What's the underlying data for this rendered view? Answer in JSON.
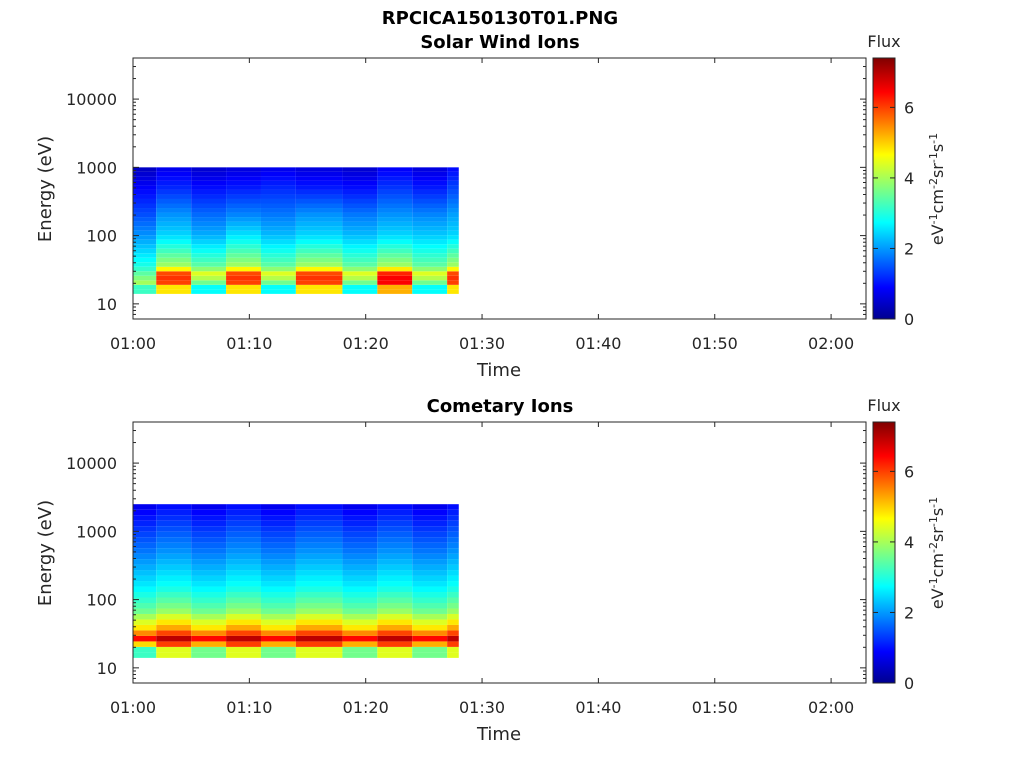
{
  "figure_title": "RPCICA150130T01.PNG",
  "colors": {
    "axis": "#262626",
    "frame": "#262626",
    "background": "#ffffff"
  },
  "chart_data": [
    {
      "type": "heatmap",
      "title": "Solar Wind Ions",
      "xlabel": "Time",
      "ylabel": "Energy (eV)",
      "x_ticks": [
        "01:00",
        "01:10",
        "01:20",
        "01:30",
        "01:40",
        "01:50",
        "02:00"
      ],
      "xlim": [
        "01:00",
        "02:03"
      ],
      "y_scale": "log",
      "y_ticks": [
        "10",
        "100",
        "1000",
        "10000"
      ],
      "ylim": [
        6,
        40000
      ],
      "colorbar": {
        "title": "Flux",
        "label": "eV-1cm-2sr-1s-1",
        "ticks": [
          "0",
          "2",
          "4",
          "6"
        ],
        "range": [
          0,
          7.4
        ],
        "colormap": "jet"
      },
      "time_columns": [
        "01:00",
        "01:02",
        "01:05",
        "01:08",
        "01:11",
        "01:14",
        "01:18",
        "01:21",
        "01:24",
        "01:27"
      ],
      "energy_bands_eV": [
        {
          "e": 20,
          "v": [
            4,
            6.0,
            3.5,
            6.0,
            3.5,
            6.0,
            3.5,
            6.5,
            3.5,
            6.0
          ]
        },
        {
          "e": 27,
          "v": [
            3.5,
            6.2,
            4.5,
            6.2,
            4.5,
            6.2,
            4.5,
            6.5,
            4.5,
            6.2
          ]
        },
        {
          "e": 35,
          "v": [
            3.0,
            4.0,
            3.5,
            4.0,
            3.5,
            4.0,
            3.5,
            4.0,
            3.5,
            4.0
          ]
        },
        {
          "e": 100,
          "v": [
            2.0,
            2.5,
            2.2,
            2.6,
            2.3,
            2.5,
            2.3,
            2.5,
            2.4,
            2.5
          ]
        },
        {
          "e": 200,
          "v": [
            1.5,
            2.0,
            1.7,
            1.9,
            1.8,
            2.0,
            1.8,
            2.0,
            1.9,
            2.1
          ]
        },
        {
          "e": 500,
          "v": [
            0.9,
            1.2,
            1.0,
            1.1,
            1.2,
            1.1,
            1.0,
            1.3,
            1.1,
            1.4
          ]
        }
      ]
    },
    {
      "type": "heatmap",
      "title": "Cometary Ions",
      "xlabel": "Time",
      "ylabel": "Energy (eV)",
      "x_ticks": [
        "01:00",
        "01:10",
        "01:20",
        "01:30",
        "01:40",
        "01:50",
        "02:00"
      ],
      "xlim": [
        "01:00",
        "02:03"
      ],
      "y_scale": "log",
      "y_ticks": [
        "10",
        "100",
        "1000",
        "10000"
      ],
      "ylim": [
        6,
        40000
      ],
      "colorbar": {
        "title": "Flux",
        "label": "eV-1cm-2sr-1s-1",
        "ticks": [
          "0",
          "2",
          "4",
          "6"
        ],
        "range": [
          0,
          7.4
        ],
        "colormap": "jet"
      },
      "time_columns": [
        "01:00",
        "01:02",
        "01:05",
        "01:08",
        "01:11",
        "01:14",
        "01:18",
        "01:21",
        "01:24",
        "01:27"
      ],
      "energy_bands_eV": [
        {
          "e": 20,
          "v": [
            4.0,
            5.5,
            4.5,
            5.5,
            4.5,
            5.5,
            4.5,
            5.5,
            4.5,
            5.5
          ]
        },
        {
          "e": 27,
          "v": [
            6.5,
            7.0,
            6.5,
            7.0,
            6.5,
            7.0,
            6.5,
            7.0,
            6.5,
            7.0
          ]
        },
        {
          "e": 35,
          "v": [
            5.0,
            5.5,
            5.0,
            5.5,
            5.0,
            5.5,
            5.0,
            5.5,
            5.0,
            5.5
          ]
        },
        {
          "e": 70,
          "v": [
            3.5,
            3.8,
            3.5,
            3.8,
            3.5,
            3.8,
            3.5,
            3.8,
            3.5,
            3.8
          ]
        },
        {
          "e": 150,
          "v": [
            2.7,
            2.9,
            2.7,
            2.9,
            2.7,
            2.9,
            2.7,
            2.9,
            2.7,
            2.9
          ]
        },
        {
          "e": 500,
          "v": [
            1.8,
            2.0,
            1.8,
            2.0,
            1.8,
            2.0,
            1.8,
            2.0,
            1.8,
            2.0
          ]
        }
      ]
    }
  ]
}
